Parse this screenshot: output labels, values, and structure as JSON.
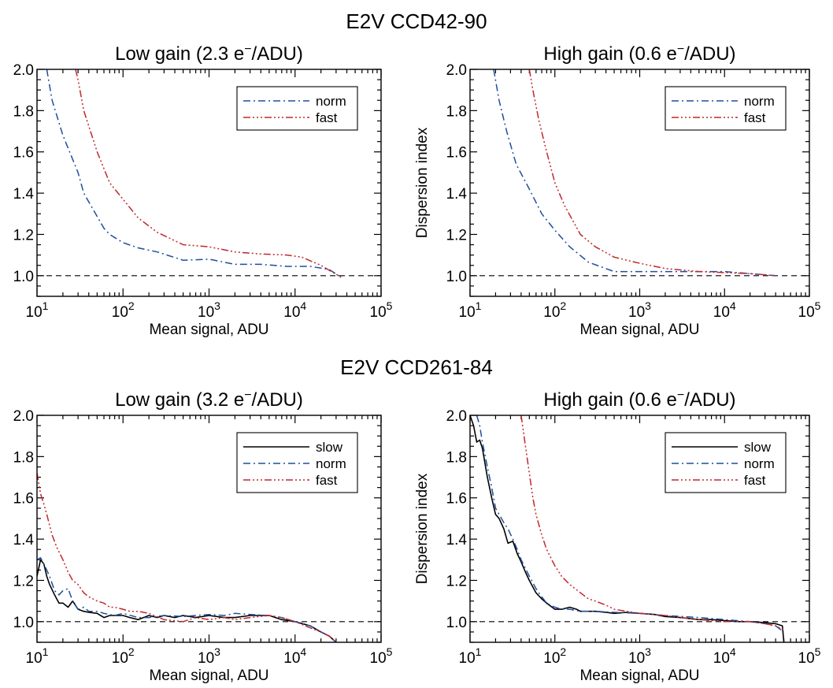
{
  "figure": {
    "group_titles": [
      "E2V CCD42-90",
      "E2V CCD261-84"
    ]
  },
  "styles": {
    "slow": {
      "color": "#000000",
      "dash": "solid"
    },
    "norm": {
      "color": "#1f4e9c",
      "dash": "dash-dot"
    },
    "fast": {
      "color": "#c0282c",
      "dash": "dash-dot-dot-dot"
    }
  },
  "chart_data": [
    {
      "type": "line",
      "group": "E2V CCD42-90",
      "title_main": "Low gain (2.3 e",
      "title_sup": "−",
      "title_end": "/ADU)",
      "xlabel": "Mean signal, ADU",
      "ylabel": "",
      "xscale": "log",
      "xlim": [
        10,
        100000
      ],
      "ylim": [
        0.9,
        2.0
      ],
      "x_ticks": [
        {
          "base": "10",
          "exp": "1"
        },
        {
          "base": "10",
          "exp": "2"
        },
        {
          "base": "10",
          "exp": "3"
        },
        {
          "base": "10",
          "exp": "4"
        },
        {
          "base": "10",
          "exp": "5"
        }
      ],
      "y_ticks": [
        "1.0",
        "1.2",
        "1.4",
        "1.6",
        "1.8",
        "2.0"
      ],
      "reference_line": 1.0,
      "legend_position": "top-right",
      "series": [
        {
          "name": "norm",
          "x": [
            13,
            15,
            20,
            30,
            35,
            60,
            70,
            100,
            150,
            250,
            500,
            1000,
            2000,
            4000,
            8000,
            15000,
            25000,
            35000
          ],
          "y": [
            2.0,
            1.85,
            1.68,
            1.5,
            1.4,
            1.23,
            1.2,
            1.16,
            1.135,
            1.115,
            1.075,
            1.08,
            1.055,
            1.055,
            1.045,
            1.045,
            1.03,
            0.99
          ]
        },
        {
          "name": "fast",
          "x": [
            28,
            30,
            35,
            50,
            70,
            100,
            150,
            250,
            500,
            1000,
            2000,
            4000,
            8000,
            12000,
            20000,
            35000
          ],
          "y": [
            2.0,
            1.95,
            1.8,
            1.6,
            1.45,
            1.37,
            1.28,
            1.21,
            1.15,
            1.14,
            1.115,
            1.105,
            1.1,
            1.09,
            1.05,
            0.99
          ]
        }
      ]
    },
    {
      "type": "line",
      "group": "E2V CCD42-90",
      "title_main": "High gain (0.6 e",
      "title_sup": "−",
      "title_end": "/ADU)",
      "xlabel": "Mean signal, ADU",
      "ylabel": "Dispersion index",
      "xscale": "log",
      "xlim": [
        10,
        100000
      ],
      "ylim": [
        0.9,
        2.0
      ],
      "x_ticks": [
        {
          "base": "10",
          "exp": "1"
        },
        {
          "base": "10",
          "exp": "2"
        },
        {
          "base": "10",
          "exp": "3"
        },
        {
          "base": "10",
          "exp": "4"
        },
        {
          "base": "10",
          "exp": "5"
        }
      ],
      "y_ticks": [
        "1.0",
        "1.2",
        "1.4",
        "1.6",
        "1.8",
        "2.0"
      ],
      "reference_line": 1.0,
      "legend_position": "top-right",
      "series": [
        {
          "name": "norm",
          "x": [
            19,
            22,
            27,
            35,
            50,
            70,
            100,
            150,
            250,
            500,
            1000,
            3000,
            10000,
            20000,
            40000
          ],
          "y": [
            2.0,
            1.85,
            1.7,
            1.54,
            1.42,
            1.3,
            1.22,
            1.14,
            1.065,
            1.02,
            1.02,
            1.02,
            1.02,
            1.01,
            1.0
          ]
        },
        {
          "name": "fast",
          "x": [
            50,
            55,
            65,
            80,
            100,
            130,
            200,
            300,
            500,
            1000,
            2000,
            5000,
            10000,
            20000,
            40000
          ],
          "y": [
            2.0,
            1.9,
            1.75,
            1.6,
            1.45,
            1.34,
            1.2,
            1.14,
            1.09,
            1.06,
            1.035,
            1.02,
            1.015,
            1.01,
            1.0
          ]
        }
      ]
    },
    {
      "type": "line",
      "group": "E2V CCD261-84",
      "title_main": "Low gain (3.2 e",
      "title_sup": "−",
      "title_end": "/ADU)",
      "xlabel": "Mean signal, ADU",
      "ylabel": "",
      "xscale": "log",
      "xlim": [
        10,
        100000
      ],
      "ylim": [
        0.9,
        2.0
      ],
      "x_ticks": [
        {
          "base": "10",
          "exp": "1"
        },
        {
          "base": "10",
          "exp": "2"
        },
        {
          "base": "10",
          "exp": "3"
        },
        {
          "base": "10",
          "exp": "4"
        },
        {
          "base": "10",
          "exp": "5"
        }
      ],
      "y_ticks": [
        "1.0",
        "1.2",
        "1.4",
        "1.6",
        "1.8",
        "2.0"
      ],
      "reference_line": 1.0,
      "legend_position": "top-right",
      "series": [
        {
          "name": "slow",
          "x": [
            10,
            11,
            12,
            13,
            14,
            16,
            18,
            20,
            23,
            26,
            30,
            35,
            40,
            50,
            60,
            70,
            80,
            100,
            120,
            150,
            200,
            250,
            300,
            400,
            500,
            700,
            1000,
            1500,
            2000,
            3000,
            5000,
            7000,
            10000,
            15000,
            20000,
            25000,
            30000
          ],
          "y": [
            1.22,
            1.3,
            1.28,
            1.22,
            1.18,
            1.13,
            1.09,
            1.09,
            1.07,
            1.1,
            1.06,
            1.05,
            1.045,
            1.04,
            1.02,
            1.03,
            1.03,
            1.03,
            1.02,
            1.01,
            1.03,
            1.02,
            1.03,
            1.02,
            1.03,
            1.02,
            1.03,
            1.02,
            1.02,
            1.03,
            1.03,
            1.01,
            1.0,
            0.98,
            0.95,
            0.93,
            0.9
          ]
        },
        {
          "name": "norm",
          "x": [
            10,
            11,
            12,
            14,
            16,
            18,
            20,
            23,
            26,
            30,
            35,
            40,
            50,
            60,
            80,
            100,
            150,
            200,
            300,
            500,
            700,
            1000,
            1500,
            2000,
            3000,
            5000,
            7000,
            10000,
            15000,
            20000,
            25000,
            30000
          ],
          "y": [
            1.3,
            1.31,
            1.28,
            1.22,
            1.15,
            1.13,
            1.15,
            1.16,
            1.1,
            1.06,
            1.07,
            1.05,
            1.05,
            1.04,
            1.03,
            1.04,
            1.02,
            1.02,
            1.03,
            1.025,
            1.03,
            1.035,
            1.03,
            1.04,
            1.035,
            1.03,
            1.02,
            1.0,
            0.98,
            0.95,
            0.93,
            0.9
          ]
        },
        {
          "name": "fast",
          "x": [
            10,
            11,
            12,
            13,
            15,
            17,
            20,
            23,
            26,
            30,
            35,
            40,
            50,
            60,
            70,
            80,
            100,
            120,
            150,
            200,
            300,
            500,
            700,
            1000,
            1500,
            2000,
            3000,
            5000,
            7000,
            10000,
            15000,
            20000,
            25000,
            30000
          ],
          "y": [
            1.72,
            1.62,
            1.57,
            1.52,
            1.42,
            1.36,
            1.3,
            1.24,
            1.2,
            1.18,
            1.14,
            1.12,
            1.1,
            1.09,
            1.07,
            1.07,
            1.06,
            1.05,
            1.05,
            1.04,
            1.01,
            1.0,
            1.02,
            1.01,
            1.02,
            1.01,
            1.02,
            1.03,
            1.02,
            1.0,
            0.97,
            0.95,
            0.93,
            0.9
          ]
        }
      ]
    },
    {
      "type": "line",
      "group": "E2V CCD261-84",
      "title_main": "High gain (0.6 e",
      "title_sup": "−",
      "title_end": "/ADU)",
      "xlabel": "Mean signal, ADU",
      "ylabel": "Dispersion index",
      "xscale": "log",
      "xlim": [
        10,
        100000
      ],
      "ylim": [
        0.9,
        2.0
      ],
      "x_ticks": [
        {
          "base": "10",
          "exp": "1"
        },
        {
          "base": "10",
          "exp": "2"
        },
        {
          "base": "10",
          "exp": "3"
        },
        {
          "base": "10",
          "exp": "4"
        },
        {
          "base": "10",
          "exp": "5"
        }
      ],
      "y_ticks": [
        "1.0",
        "1.2",
        "1.4",
        "1.6",
        "1.8",
        "2.0"
      ],
      "reference_line": 1.0,
      "legend_position": "top-right",
      "series": [
        {
          "name": "slow",
          "x": [
            10,
            11,
            12,
            13,
            14,
            16,
            18,
            20,
            22,
            25,
            28,
            32,
            36,
            40,
            45,
            50,
            60,
            70,
            80,
            100,
            120,
            150,
            180,
            200,
            250,
            300,
            400,
            500,
            700,
            1000,
            1500,
            2000,
            3000,
            5000,
            7000,
            10000,
            15000,
            20000,
            30000,
            40000,
            48000,
            50000
          ],
          "y": [
            2.0,
            1.95,
            1.87,
            1.88,
            1.84,
            1.7,
            1.6,
            1.52,
            1.5,
            1.45,
            1.38,
            1.39,
            1.33,
            1.29,
            1.24,
            1.2,
            1.14,
            1.11,
            1.09,
            1.06,
            1.06,
            1.07,
            1.06,
            1.05,
            1.05,
            1.05,
            1.045,
            1.04,
            1.045,
            1.04,
            1.035,
            1.025,
            1.02,
            1.01,
            1.01,
            1.005,
            1.0,
            1.0,
            0.995,
            0.99,
            0.98,
            0.9
          ]
        },
        {
          "name": "norm",
          "x": [
            12,
            13,
            14,
            16,
            18,
            20,
            22,
            25,
            28,
            32,
            36,
            40,
            50,
            60,
            70,
            80,
            100,
            120,
            150,
            200,
            300,
            500,
            1000,
            2000,
            5000,
            10000,
            20000,
            30000,
            40000,
            50000
          ],
          "y": [
            2.0,
            1.95,
            1.87,
            1.75,
            1.65,
            1.55,
            1.52,
            1.48,
            1.45,
            1.4,
            1.35,
            1.3,
            1.22,
            1.16,
            1.12,
            1.09,
            1.07,
            1.06,
            1.06,
            1.05,
            1.05,
            1.045,
            1.04,
            1.03,
            1.02,
            1.01,
            1.0,
            0.99,
            0.98,
            0.95
          ]
        },
        {
          "name": "fast",
          "x": [
            40,
            45,
            50,
            55,
            60,
            70,
            80,
            100,
            120,
            150,
            200,
            250,
            300,
            400,
            500,
            700,
            1000,
            2000,
            3000,
            5000,
            10000,
            20000,
            30000,
            40000,
            50000
          ],
          "y": [
            2.0,
            1.85,
            1.72,
            1.6,
            1.52,
            1.42,
            1.35,
            1.27,
            1.22,
            1.18,
            1.14,
            1.11,
            1.1,
            1.08,
            1.06,
            1.05,
            1.04,
            1.03,
            1.02,
            1.01,
            1.0,
            1.0,
            0.99,
            0.98,
            0.96
          ]
        }
      ]
    }
  ]
}
